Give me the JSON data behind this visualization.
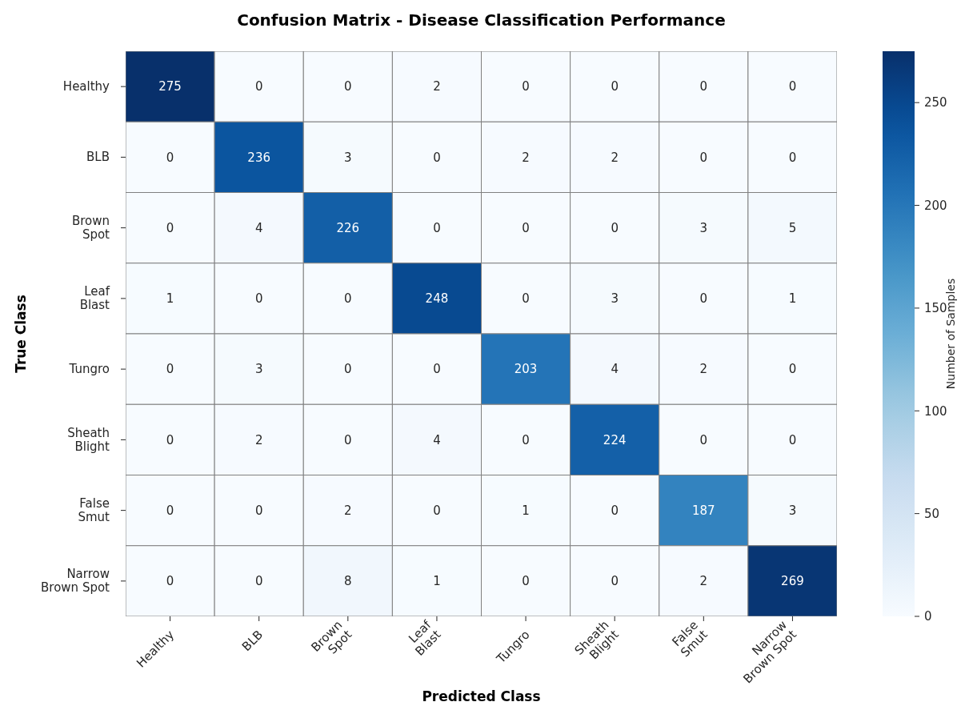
{
  "chart_data": {
    "type": "heatmap",
    "title": "Confusion Matrix - Disease Classification Performance",
    "xlabel": "Predicted Class",
    "ylabel": "True Class",
    "clabel": "Number of Samples",
    "categories": [
      "Healthy",
      "BLB",
      "Brown\nSpot",
      "Leaf\nBlast",
      "Tungro",
      "Sheath\nBlight",
      "False\nSmut",
      "Narrow\nBrown Spot"
    ],
    "y_categories": [
      "Healthy",
      "BLB",
      "Brown\nSpot",
      "Leaf\nBlast",
      "Tungro",
      "Sheath\nBlight",
      "False\nSmut",
      "Narrow\nBrown Spot"
    ],
    "cells": [
      [
        275,
        0,
        0,
        2,
        0,
        0,
        0,
        0
      ],
      [
        0,
        236,
        3,
        0,
        2,
        2,
        0,
        0
      ],
      [
        0,
        4,
        226,
        0,
        0,
        0,
        3,
        5
      ],
      [
        1,
        0,
        0,
        248,
        0,
        3,
        0,
        1
      ],
      [
        0,
        3,
        0,
        0,
        203,
        4,
        2,
        0
      ],
      [
        0,
        2,
        0,
        4,
        0,
        224,
        0,
        0
      ],
      [
        0,
        0,
        2,
        0,
        1,
        0,
        187,
        3
      ],
      [
        0,
        0,
        8,
        1,
        0,
        0,
        2,
        269
      ]
    ],
    "clim": [
      0,
      275
    ],
    "cticks": [
      0,
      50,
      100,
      150,
      200,
      250
    ],
    "data_labels": true
  }
}
